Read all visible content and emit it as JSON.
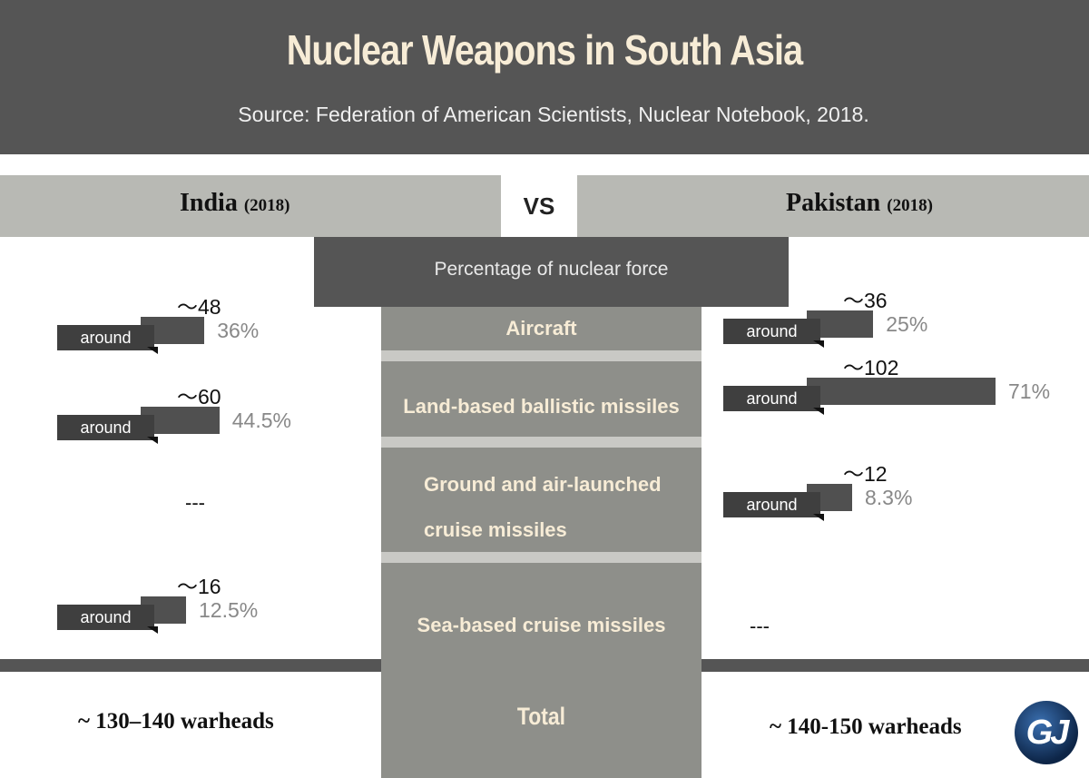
{
  "header": {
    "title": "Nuclear Weapons in South Asia",
    "source": "Source: Federation of American Scientists, Nuclear Notebook, 2018."
  },
  "comparison": {
    "left_country": "India",
    "left_year": "(2018)",
    "vs": "VS",
    "right_country": "Pakistan",
    "right_year": "(2018)",
    "metric_label": "Percentage of nuclear force",
    "around_label": "around",
    "missing_value": "---",
    "total_label": "Total",
    "india_total": "~  130–140  warheads",
    "pakistan_total": "~ 140-150 warheads"
  },
  "logo_text": "GJ",
  "colors": {
    "header_bg": "#555555",
    "title_color": "#f7ecd6",
    "band_bg": "#b8b9b4",
    "center_column": "#8e8f8a",
    "bar": "#505050",
    "percent_text": "#888888"
  },
  "chart_data": {
    "type": "bar",
    "categories": [
      "Aircraft",
      "Land-based ballistic missiles",
      "Ground and air-launched cruise missiles",
      "Sea-based cruise missiles"
    ],
    "series": [
      {
        "name": "India",
        "count_labels": [
          "～48",
          "～60",
          null,
          "～16"
        ],
        "counts": [
          48,
          60,
          null,
          16
        ],
        "percent_labels": [
          "36%",
          "44.5%",
          null,
          "12.5%"
        ],
        "values": [
          36,
          44.5,
          null,
          12.5
        ]
      },
      {
        "name": "Pakistan",
        "count_labels": [
          "～36",
          "～102",
          "～12",
          null
        ],
        "counts": [
          36,
          102,
          12,
          null
        ],
        "percent_labels": [
          "25%",
          "71%",
          "8.3%",
          null
        ],
        "values": [
          25,
          71,
          8.3,
          null
        ]
      }
    ],
    "unit": "%"
  }
}
